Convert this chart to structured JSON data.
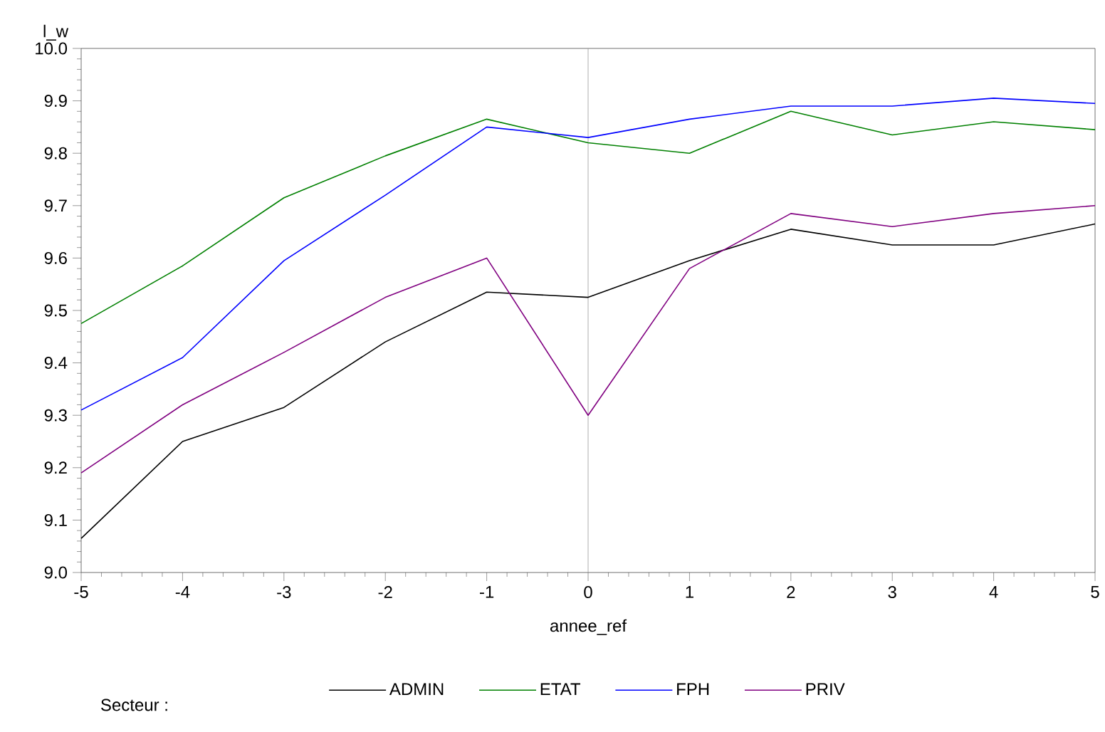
{
  "chart_data": {
    "type": "line",
    "xlabel": "annee_ref",
    "ylabel": "l_w",
    "legend_title": "Secteur :",
    "x": [
      -5,
      -4,
      -3,
      -2,
      -1,
      0,
      1,
      2,
      3,
      4,
      5
    ],
    "xlim": [
      -5,
      5
    ],
    "xticks": [
      -5,
      -4,
      -3,
      -2,
      -1,
      0,
      1,
      2,
      3,
      4,
      5
    ],
    "ylim": [
      9.0,
      10.0
    ],
    "yticks": [
      {
        "value": 9.0,
        "label": "9.0"
      },
      9.1,
      9.2,
      9.3,
      9.4,
      9.5,
      9.6,
      9.7,
      9.8,
      9.9,
      {
        "value": 10.0,
        "label": "10.0"
      }
    ],
    "legend": "bottom",
    "ref_lines": [
      {
        "axis": "x",
        "value": 0,
        "color": "#999999"
      }
    ],
    "series": [
      {
        "name": "ADMIN",
        "color": "#000000",
        "values": [
          9.065,
          9.25,
          9.315,
          9.44,
          9.535,
          9.525,
          9.595,
          9.655,
          9.625,
          9.625,
          9.665
        ]
      },
      {
        "name": "ETAT",
        "color": "#008000",
        "values": [
          9.475,
          9.585,
          9.715,
          9.795,
          9.865,
          9.82,
          9.8,
          9.88,
          9.835,
          9.86,
          9.845
        ]
      },
      {
        "name": "FPH",
        "color": "#0000ff",
        "values": [
          9.31,
          9.41,
          9.595,
          9.72,
          9.85,
          9.83,
          9.865,
          9.89,
          9.89,
          9.905,
          9.895
        ]
      },
      {
        "name": "PRIV",
        "color": "#800080",
        "values": [
          9.19,
          9.32,
          9.42,
          9.525,
          9.6,
          9.3,
          9.58,
          9.685,
          9.66,
          9.685,
          9.7
        ]
      }
    ]
  }
}
